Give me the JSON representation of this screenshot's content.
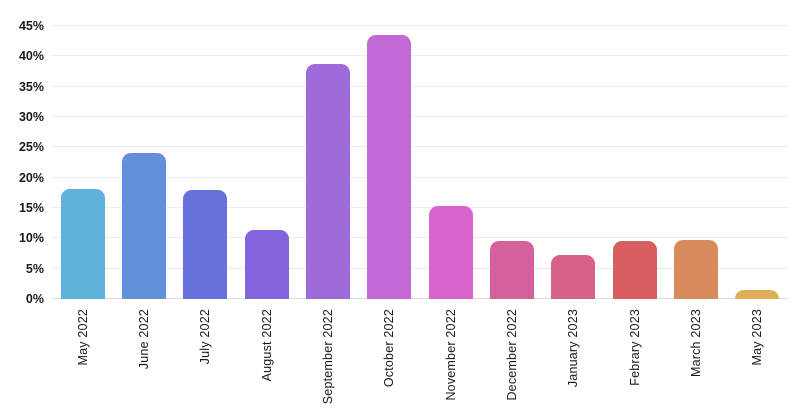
{
  "chart_data": {
    "type": "bar",
    "title": "",
    "xlabel": "",
    "ylabel": "",
    "categories": [
      "May 2022",
      "June 2022",
      "July 2022",
      "August 2022",
      "September 2022",
      "October 2022",
      "November 2022",
      "December 2022",
      "January 2023",
      "Febrary 2023",
      "March 2023",
      "May 2023"
    ],
    "values": [
      18.2,
      24.1,
      17.9,
      11.3,
      38.7,
      43.5,
      15.3,
      9.6,
      7.2,
      9.5,
      9.7,
      1.5
    ],
    "value_unit": "%",
    "bar_colors": [
      "#5fb1dc",
      "#6290da",
      "#6671dc",
      "#8264dc",
      "#9c6bd9",
      "#c368d7",
      "#da64ce",
      "#d6609d",
      "#d86286",
      "#d75f62",
      "#d88a5c",
      "#dfad55"
    ],
    "ylim": [
      0,
      45
    ],
    "ytick_step": 5,
    "ytick_labels": [
      "0%",
      "5%",
      "10%",
      "15%",
      "20%",
      "25%",
      "30%",
      "35%",
      "40%",
      "45%"
    ],
    "grid": true,
    "legend": "none",
    "x_label_rotation": -90
  },
  "colors": {
    "background": "#ffffff",
    "gridline": "#ebebeb",
    "baseline": "#e0e0e0",
    "tick_text": "#1a1a1a"
  }
}
